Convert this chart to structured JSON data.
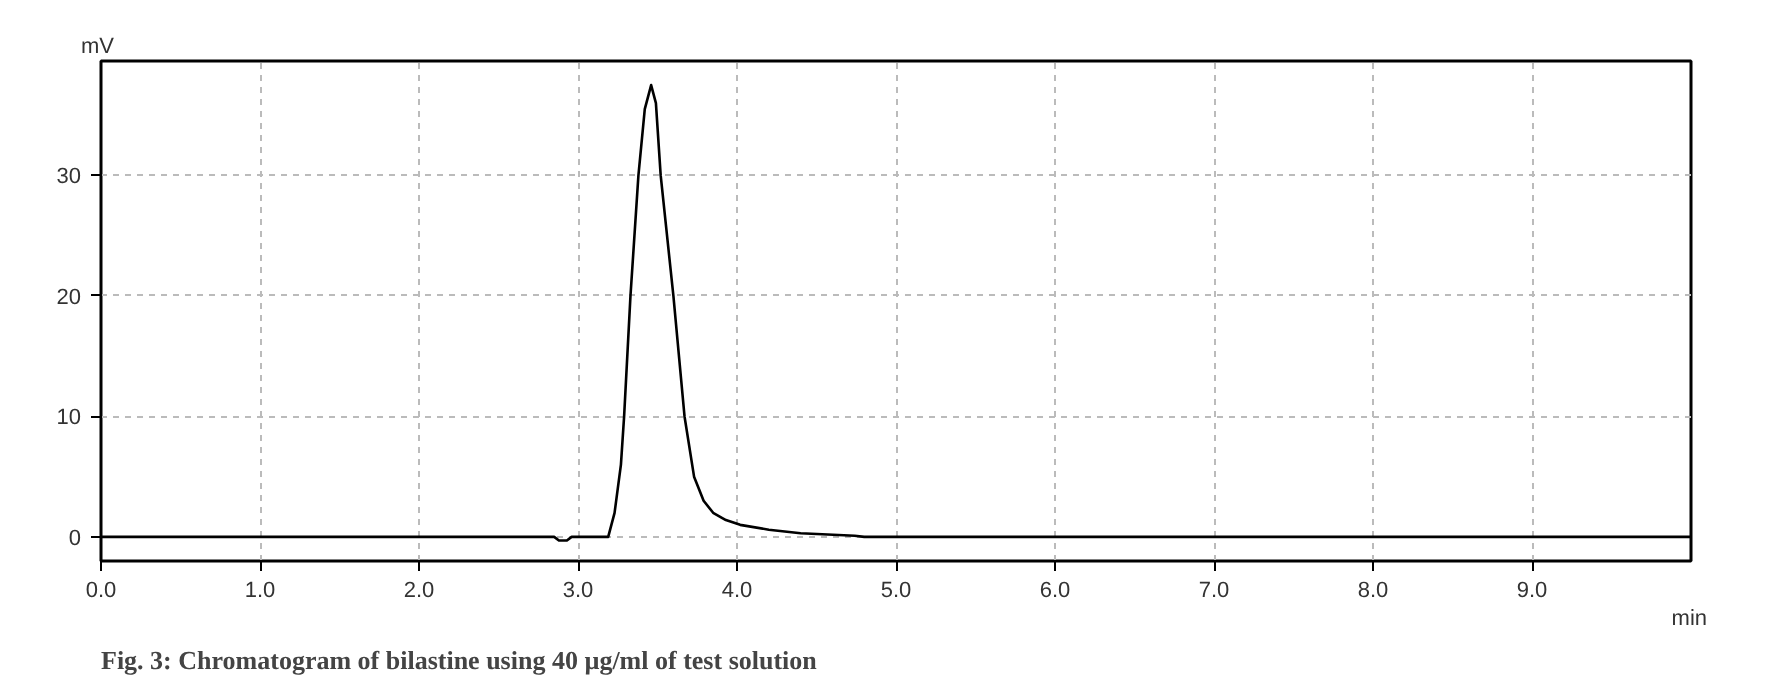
{
  "chart_data": {
    "type": "line",
    "title": "Fig. 3: Chromatogram of bilastine using 40 µg/ml of test solution",
    "xlabel": "min",
    "ylabel": "mV",
    "xlim": [
      0,
      10
    ],
    "ylim": [
      -2,
      39.5
    ],
    "xticks": [
      {
        "value": 0,
        "label": "0.0"
      },
      {
        "value": 1,
        "label": "1.0"
      },
      {
        "value": 2,
        "label": "2.0"
      },
      {
        "value": 3,
        "label": "3.0"
      },
      {
        "value": 4,
        "label": "4.0"
      },
      {
        "value": 5,
        "label": "5.0"
      },
      {
        "value": 6,
        "label": "6.0"
      },
      {
        "value": 7,
        "label": "7.0"
      },
      {
        "value": 8,
        "label": "8.0"
      },
      {
        "value": 9,
        "label": "9.0"
      }
    ],
    "yticks": [
      0,
      10,
      20,
      30
    ],
    "grid": true,
    "line_style": "solid",
    "series": [
      {
        "color": "#000000",
        "x": [
          0,
          2.85,
          2.88,
          2.93,
          2.96,
          3.1,
          3.19,
          3.23,
          3.27,
          3.29,
          3.33,
          3.38,
          3.42,
          3.46,
          3.49,
          3.52,
          3.56,
          3.6,
          3.67,
          3.73,
          3.79,
          3.85,
          3.93,
          4.02,
          4.2,
          4.4,
          4.74,
          4.8,
          10
        ],
        "values": [
          0,
          0,
          -0.3,
          -0.3,
          0,
          0,
          0,
          2,
          6,
          10,
          20,
          30,
          35.5,
          37.5,
          36,
          30,
          25,
          20,
          10,
          5,
          3,
          2,
          1.4,
          1,
          0.6,
          0.3,
          0.1,
          0,
          0
        ]
      }
    ]
  }
}
